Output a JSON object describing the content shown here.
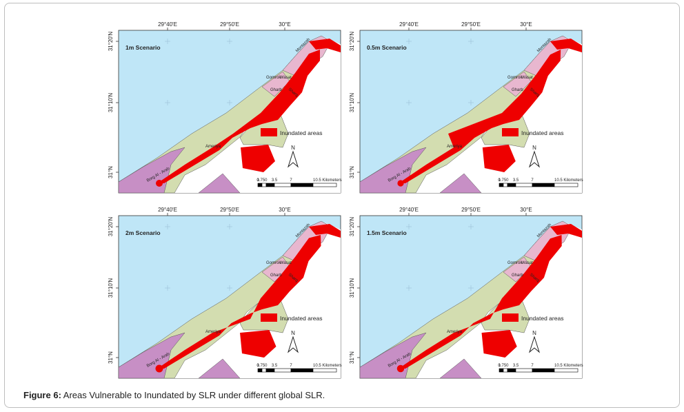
{
  "figure": {
    "caption_label": "Figure 6:",
    "caption_text": " Areas Vulnerable to Inundated by SLR under different global SLR."
  },
  "colors": {
    "sea": "#bfe6f7",
    "land": "#d3ddb0",
    "inundated": "#ee0000",
    "district_pink": "#e8b7cf",
    "district_purple": "#c78fc5",
    "border": "#555555"
  },
  "panels": [
    {
      "scenario": "1m Scenario",
      "legend": "Inundated areas",
      "lon_labels": [
        "29°40'E",
        "29°50'E",
        "30°E"
      ],
      "lat_labels": [
        "31°20'N",
        "31°10'N",
        "31°N"
      ],
      "places": [
        "Montazah",
        "Wasat",
        "Gomrok",
        "Gharb",
        "Sharq",
        "Ameriya",
        "Borg Al - Arab"
      ],
      "north": "N",
      "scale_ticks": [
        "0",
        "1.750",
        "3.5",
        "7",
        "10.5 Kilometers"
      ]
    },
    {
      "scenario": "0.5m Scenario",
      "legend": "Inundated areas",
      "lon_labels": [
        "29°40'E",
        "29°50'E",
        "30°E"
      ],
      "lat_labels": [
        "31°20'N",
        "31°10'N",
        "31°N"
      ],
      "places": [
        "Montazah",
        "Wasat",
        "Gomrok",
        "Gharb",
        "Sharq",
        "Ameriya",
        "Borg Al - Arab"
      ],
      "north": "N",
      "scale_ticks": [
        "0",
        "1.750",
        "3.5",
        "7",
        "10.5 Kilometers"
      ]
    },
    {
      "scenario": "2m Scenario",
      "legend": "Inundated areas",
      "lon_labels": [
        "29°40'E",
        "29°50'E",
        "30°E"
      ],
      "lat_labels": [
        "31°20'N",
        "31°10'N",
        "31°N"
      ],
      "places": [
        "Montazah",
        "Wasat",
        "Gomrok",
        "Gharb",
        "Sharq",
        "Ameriya",
        "Borg Al - Arab"
      ],
      "north": "N",
      "scale_ticks": [
        "0",
        "1.750",
        "3.5",
        "7",
        "10.5 Kilometers"
      ]
    },
    {
      "scenario": "1.5m Scenario",
      "legend": "Inundated areas",
      "lon_labels": [
        "29°40'E",
        "29°50'E",
        "30°E"
      ],
      "lat_labels": [
        "31°20'N",
        "31°10'N",
        "31°N"
      ],
      "places": [
        "Montazah",
        "Wasat",
        "Gomrok",
        "Gharb",
        "Sharq",
        "Ameriya",
        "Borg Al - Arab"
      ],
      "north": "N",
      "scale_ticks": [
        "0",
        "1.750",
        "3.5",
        "7",
        "10.5 Kilometers"
      ]
    }
  ]
}
